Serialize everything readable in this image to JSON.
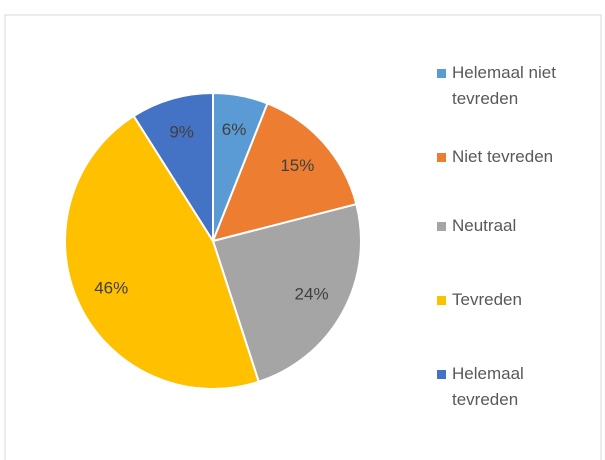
{
  "chart_data": {
    "type": "pie",
    "categories": [
      "Helemaal niet tevreden",
      "Niet tevreden",
      "Neutraal",
      "Tevreden",
      "Helemaal tevreden"
    ],
    "values": [
      6,
      15,
      24,
      46,
      9
    ],
    "value_labels": [
      "6%",
      "15%",
      "24%",
      "46%",
      "9%"
    ],
    "colors": [
      "#5b9bd5",
      "#ed7d31",
      "#a5a5a5",
      "#ffc000",
      "#4472c4"
    ],
    "legend": "right"
  }
}
